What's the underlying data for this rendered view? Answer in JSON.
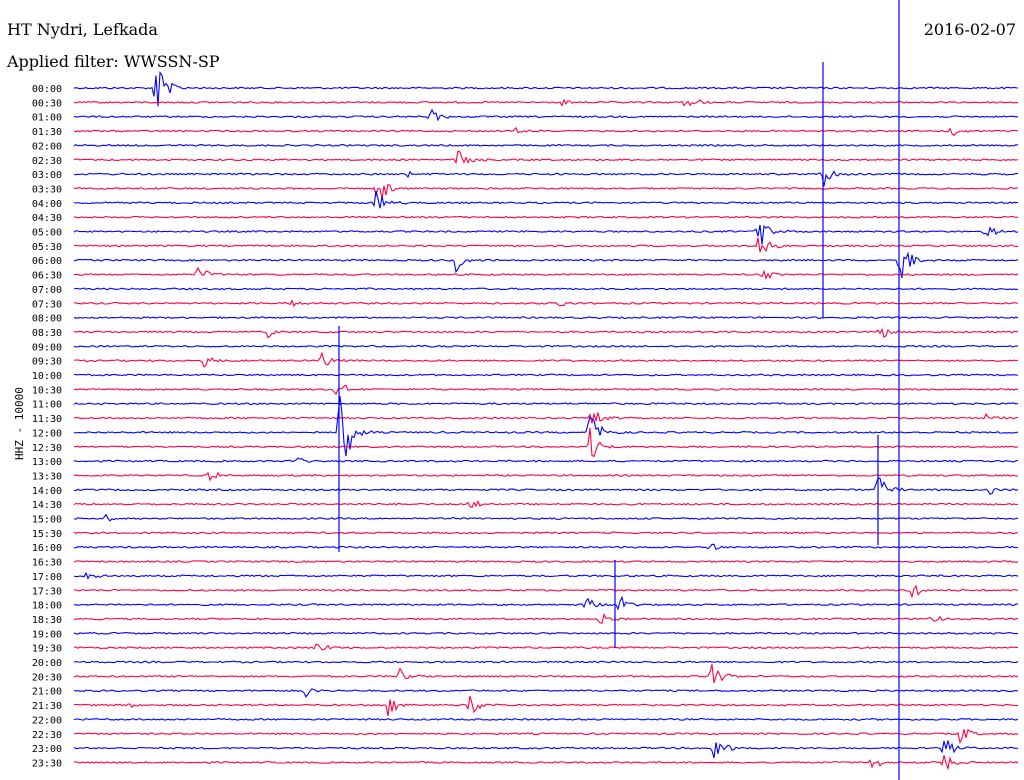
{
  "header": {
    "station": "HT Nydri, Lefkada",
    "filter": "Applied filter: WWSSN-SP",
    "date": "2016-02-07"
  },
  "channel_label": "HHZ - 10000",
  "colors": {
    "even_row": "#0000ff",
    "odd_row": "#ff0044"
  },
  "rows": [
    "00:00",
    "00:30",
    "01:00",
    "01:30",
    "02:00",
    "02:30",
    "03:00",
    "03:30",
    "04:00",
    "04:30",
    "05:00",
    "05:30",
    "06:00",
    "06:30",
    "07:00",
    "07:30",
    "08:00",
    "08:30",
    "09:00",
    "09:30",
    "10:00",
    "10:30",
    "11:00",
    "11:30",
    "12:00",
    "12:30",
    "13:00",
    "13:30",
    "14:00",
    "14:30",
    "15:00",
    "15:30",
    "16:00",
    "16:30",
    "17:00",
    "17:30",
    "18:00",
    "18:30",
    "19:00",
    "19:30",
    "20:00",
    "20:30",
    "21:00",
    "21:30",
    "22:00",
    "22:30",
    "23:00",
    "23:30"
  ]
}
